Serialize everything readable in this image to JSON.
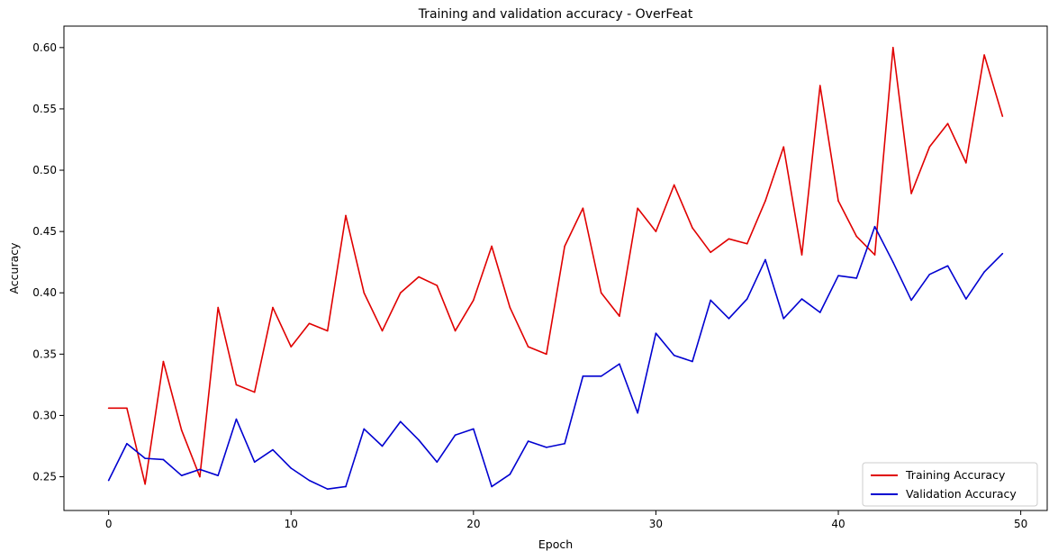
{
  "chart_data": {
    "type": "line",
    "title": "Training and validation accuracy - OverFeat",
    "xlabel": "Epoch",
    "ylabel": "Accuracy",
    "xlim": [
      -2.45,
      51.45
    ],
    "ylim": [
      0.2225,
      0.6175
    ],
    "xticks": [
      0,
      10,
      20,
      30,
      40,
      50
    ],
    "yticks": [
      0.25,
      0.3,
      0.35,
      0.4,
      0.45,
      0.5,
      0.55,
      0.6
    ],
    "ytick_labels": [
      "0.25",
      "0.30",
      "0.35",
      "0.40",
      "0.45",
      "0.50",
      "0.55",
      "0.60"
    ],
    "grid": false,
    "legend_position": "lower-right",
    "x": [
      0,
      1,
      2,
      3,
      4,
      5,
      6,
      7,
      8,
      9,
      10,
      11,
      12,
      13,
      14,
      15,
      16,
      17,
      18,
      19,
      20,
      21,
      22,
      23,
      24,
      25,
      26,
      27,
      28,
      29,
      30,
      31,
      32,
      33,
      34,
      35,
      36,
      37,
      38,
      39,
      40,
      41,
      42,
      43,
      44,
      45,
      46,
      47,
      48,
      49
    ],
    "series": [
      {
        "name": "Training Accuracy",
        "color": "#e00000",
        "values": [
          0.306,
          0.306,
          0.244,
          0.344,
          0.288,
          0.25,
          0.388,
          0.325,
          0.319,
          0.388,
          0.356,
          0.375,
          0.369,
          0.463,
          0.4,
          0.369,
          0.4,
          0.413,
          0.406,
          0.369,
          0.394,
          0.438,
          0.388,
          0.356,
          0.35,
          0.438,
          0.469,
          0.4,
          0.381,
          0.469,
          0.45,
          0.488,
          0.453,
          0.433,
          0.444,
          0.44,
          0.475,
          0.519,
          0.431,
          0.569,
          0.475,
          0.446,
          0.431,
          0.6,
          0.481,
          0.519,
          0.538,
          0.506,
          0.594,
          0.544
        ]
      },
      {
        "name": "Validation Accuracy",
        "color": "#0000d0",
        "values": [
          0.247,
          0.277,
          0.265,
          0.264,
          0.251,
          0.256,
          0.251,
          0.297,
          0.262,
          0.272,
          0.257,
          0.247,
          0.24,
          0.242,
          0.289,
          0.275,
          0.295,
          0.28,
          0.262,
          0.284,
          0.289,
          0.242,
          0.252,
          0.279,
          0.274,
          0.277,
          0.332,
          0.332,
          0.342,
          0.302,
          0.367,
          0.349,
          0.344,
          0.394,
          0.379,
          0.395,
          0.427,
          0.379,
          0.395,
          0.384,
          0.414,
          0.412,
          0.454,
          0.425,
          0.394,
          0.415,
          0.422,
          0.395,
          0.417,
          0.432
        ]
      }
    ]
  }
}
